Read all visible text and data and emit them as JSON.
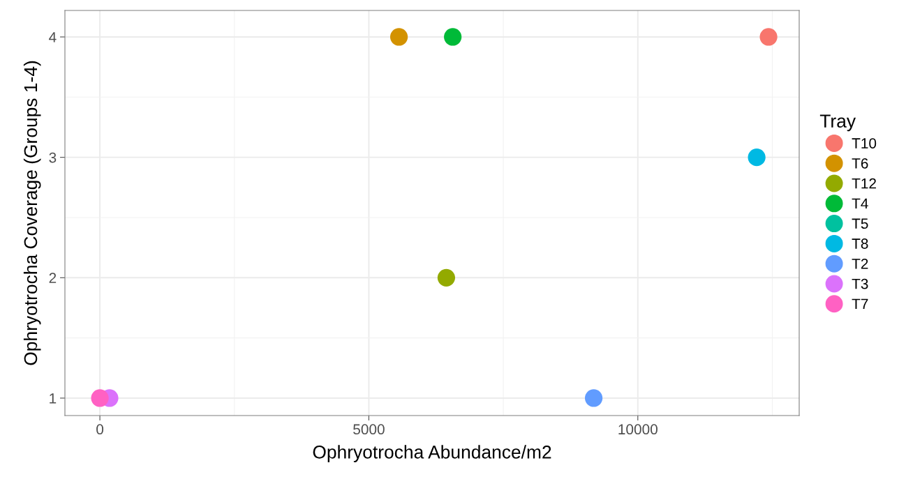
{
  "chart_data": {
    "type": "scatter",
    "xlabel": "Ophryotrocha Abundance/m2",
    "ylabel": "Ophryotrocha Coverage (Groups 1-4)",
    "legend_title": "Tray",
    "xlim": [
      -650,
      13000
    ],
    "ylim": [
      0.855,
      4.22
    ],
    "xticks": [
      0,
      5000,
      10000
    ],
    "yticks": [
      1,
      2,
      3,
      4
    ],
    "grid": true,
    "legend": "right",
    "marker": "circle",
    "series": [
      {
        "name": "T10",
        "color": "#F8766D",
        "x": [
          12430
        ],
        "values": [
          4
        ]
      },
      {
        "name": "T6",
        "color": "#D39200",
        "x": [
          5560
        ],
        "values": [
          4
        ]
      },
      {
        "name": "T12",
        "color": "#93AA00",
        "x": [
          6440
        ],
        "values": [
          2
        ]
      },
      {
        "name": "T4",
        "color": "#00BA38",
        "x": [
          6560
        ],
        "values": [
          4
        ]
      },
      {
        "name": "T5",
        "color": "#00C19F",
        "x": [
          null
        ],
        "values": [
          null
        ]
      },
      {
        "name": "T8",
        "color": "#00B9E3",
        "x": [
          12210
        ],
        "values": [
          3
        ]
      },
      {
        "name": "T2",
        "color": "#619CFF",
        "x": [
          9180
        ],
        "values": [
          1
        ]
      },
      {
        "name": "T3",
        "color": "#DB72FB",
        "x": [
          180
        ],
        "values": [
          1
        ]
      },
      {
        "name": "T7",
        "color": "#FF61C3",
        "x": [
          0
        ],
        "values": [
          1
        ]
      }
    ]
  }
}
